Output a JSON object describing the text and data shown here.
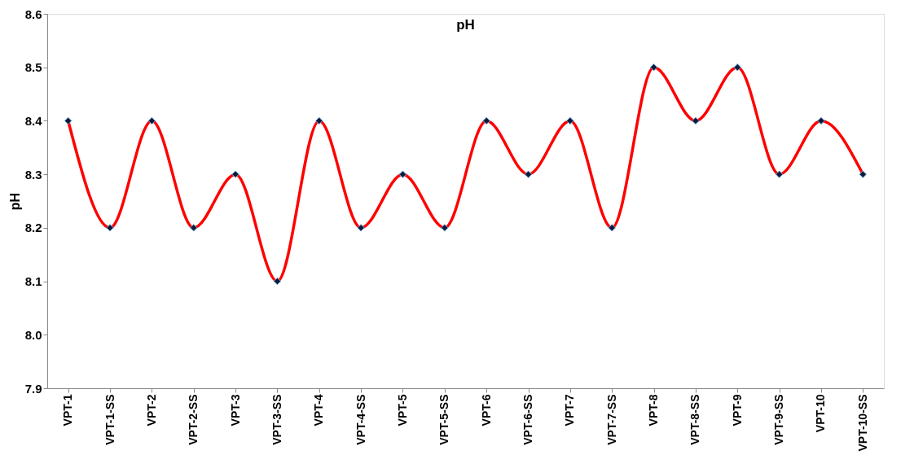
{
  "chart_data": {
    "type": "line",
    "title": "pH",
    "ylabel": "pH",
    "categories": [
      "VPT-1",
      "VPT-1-SS",
      "VPT-2",
      "VPT-2-SS",
      "VPT-3",
      "VPT-3-SS",
      "VPT-4",
      "VPT-4-SS",
      "VPT-5",
      "VPT-5-SS",
      "VPT-6",
      "VPT-6-SS",
      "VPT-7",
      "VPT-7-SS",
      "VPT-8",
      "VPT-8-SS",
      "VPT-9",
      "VPT-9-SS",
      "VPT-10",
      "VPT-10-SS"
    ],
    "series": [
      {
        "color": "#ff0000",
        "values": [
          8.4,
          8.2,
          8.4,
          8.2,
          8.3,
          8.1,
          8.4,
          8.2,
          8.3,
          8.2,
          8.4,
          8.3,
          8.4,
          8.2,
          8.5,
          8.4,
          8.5,
          8.3,
          8.4,
          8.3
        ]
      }
    ],
    "ylim": [
      7.9,
      8.6
    ],
    "yticks": [
      7.9,
      {
        "value": 8,
        "label": "8.0"
      },
      8.1,
      8.2,
      8.3,
      8.4,
      8.5,
      8.6
    ],
    "marker": "diamond",
    "line_style": "solid",
    "grid": false
  }
}
